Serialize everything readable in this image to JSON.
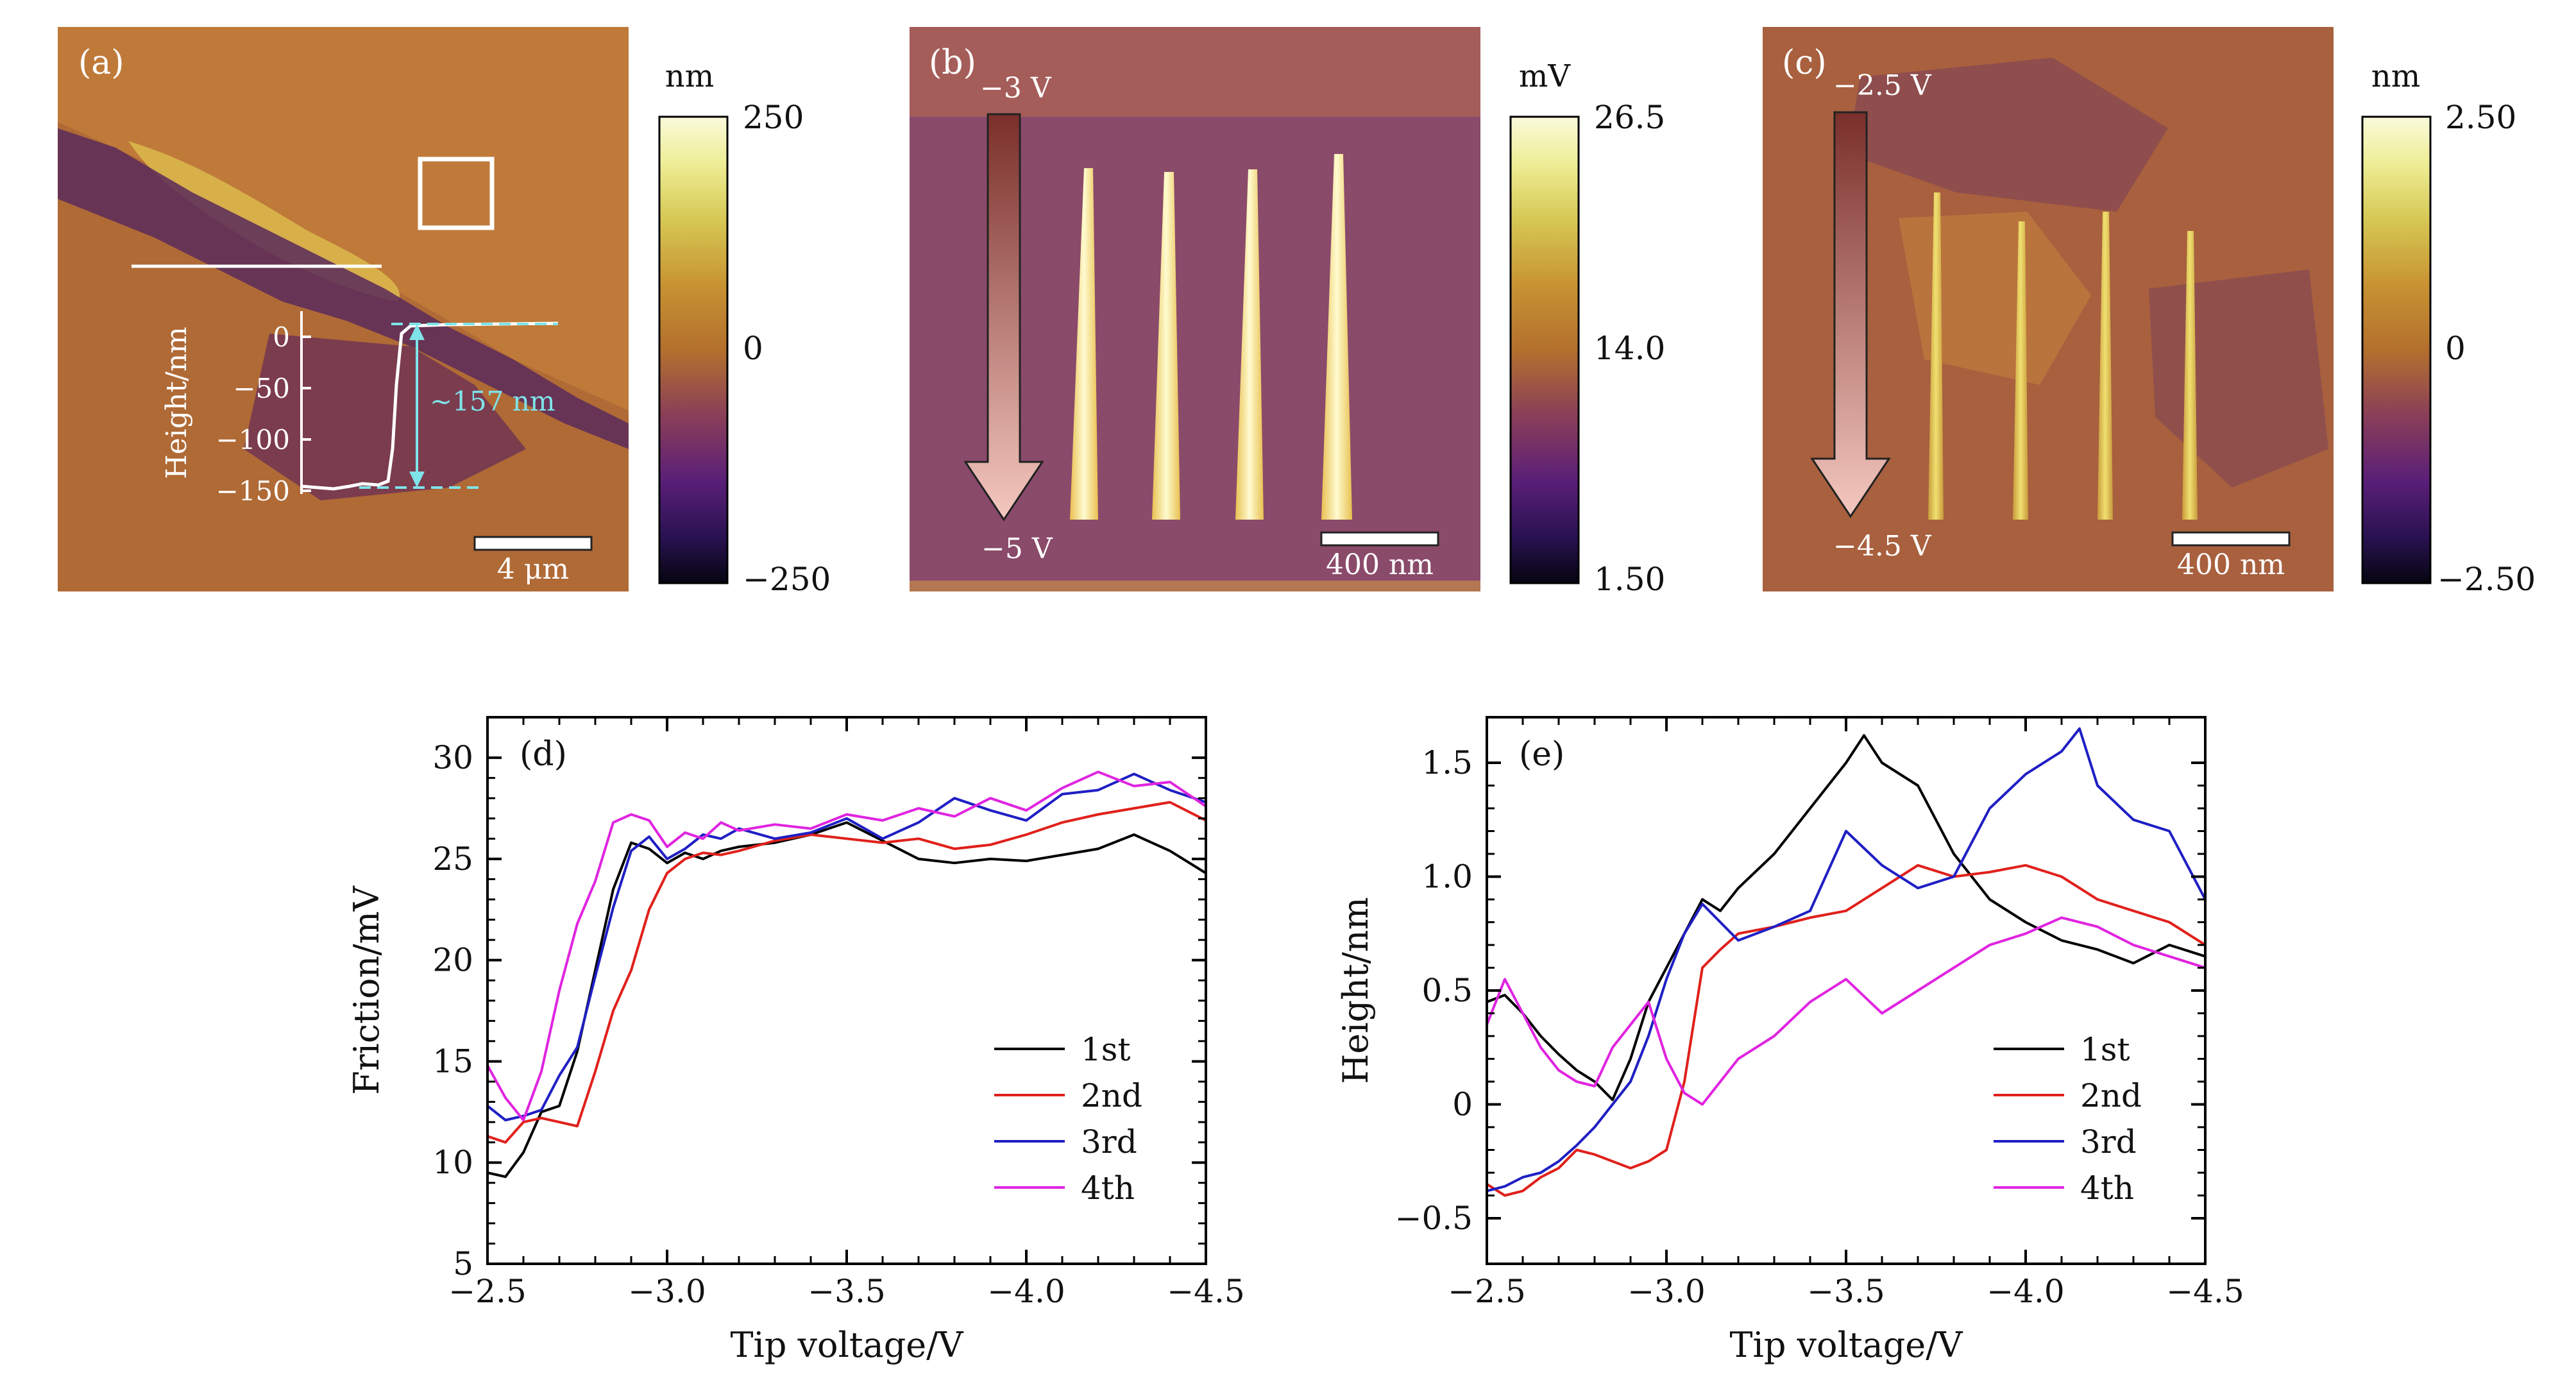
{
  "panels_top": [
    {
      "label": "(a)",
      "colorbar": {
        "unit": "nm",
        "ticks": [
          "250",
          "0",
          "−250"
        ]
      },
      "inset": {
        "ylabel": "Height/nm",
        "yticks": [
          "0",
          "−50",
          "−100",
          "−150"
        ],
        "step_annotation": "~157 nm"
      },
      "scalebar": "4 μm",
      "colors": {
        "annotation": "#7fe3ea"
      }
    },
    {
      "label": "(b)",
      "voltage_top": "−3 V",
      "voltage_bottom": "−5 V",
      "colorbar": {
        "unit": "mV",
        "ticks": [
          "26.5",
          "14.0",
          "1.50"
        ]
      },
      "scalebar": "400 nm"
    },
    {
      "label": "(c)",
      "voltage_top": "−2.5 V",
      "voltage_bottom": "−4.5 V",
      "colorbar": {
        "unit": "nm",
        "ticks": [
          "2.50",
          "0",
          "−2.50"
        ]
      },
      "scalebar": "400 nm"
    }
  ],
  "chart_data": [
    {
      "panel": "(d)",
      "type": "line",
      "xlabel": "Tip voltage/V",
      "ylabel": "Friction/mV",
      "xlim": [
        -2.5,
        -4.5
      ],
      "ylim": [
        5,
        32
      ],
      "xticks": [
        -2.5,
        -3.0,
        -3.5,
        -4.0,
        -4.5
      ],
      "xtick_labels": [
        "−2.5",
        "−3.0",
        "−3.5",
        "−4.0",
        "−4.5"
      ],
      "yticks": [
        5,
        10,
        15,
        20,
        25,
        30
      ],
      "ytick_labels": [
        "5",
        "10",
        "15",
        "20",
        "25",
        "30"
      ],
      "legend_position": "bottom-right",
      "series": [
        {
          "name": "1st",
          "color": "#000000",
          "x": [
            -2.5,
            -2.55,
            -2.6,
            -2.65,
            -2.7,
            -2.75,
            -2.8,
            -2.85,
            -2.9,
            -2.95,
            -3.0,
            -3.05,
            -3.1,
            -3.15,
            -3.2,
            -3.3,
            -3.4,
            -3.5,
            -3.6,
            -3.7,
            -3.8,
            -3.9,
            -4.0,
            -4.1,
            -4.2,
            -4.3,
            -4.4,
            -4.5
          ],
          "y": [
            9.5,
            9.3,
            10.5,
            12.5,
            12.8,
            15.5,
            19.5,
            23.5,
            25.8,
            25.5,
            24.8,
            25.3,
            25.0,
            25.4,
            25.6,
            25.8,
            26.2,
            26.8,
            25.9,
            25.0,
            24.8,
            25.0,
            24.9,
            25.2,
            25.5,
            26.2,
            25.4,
            24.3
          ]
        },
        {
          "name": "2nd",
          "color": "#e0201b",
          "x": [
            -2.5,
            -2.55,
            -2.6,
            -2.65,
            -2.7,
            -2.75,
            -2.8,
            -2.85,
            -2.9,
            -2.95,
            -3.0,
            -3.05,
            -3.1,
            -3.15,
            -3.2,
            -3.3,
            -3.4,
            -3.5,
            -3.6,
            -3.7,
            -3.8,
            -3.9,
            -4.0,
            -4.1,
            -4.2,
            -4.3,
            -4.4,
            -4.5
          ],
          "y": [
            11.3,
            11.0,
            12.0,
            12.2,
            12.0,
            11.8,
            14.5,
            17.5,
            19.5,
            22.5,
            24.3,
            25.0,
            25.3,
            25.2,
            25.4,
            25.9,
            26.2,
            26.0,
            25.8,
            26.0,
            25.5,
            25.7,
            26.2,
            26.8,
            27.2,
            27.5,
            27.8,
            26.9
          ]
        },
        {
          "name": "3rd",
          "color": "#1f1fc4",
          "x": [
            -2.5,
            -2.55,
            -2.6,
            -2.65,
            -2.7,
            -2.75,
            -2.8,
            -2.85,
            -2.9,
            -2.95,
            -3.0,
            -3.05,
            -3.1,
            -3.15,
            -3.2,
            -3.3,
            -3.4,
            -3.5,
            -3.6,
            -3.7,
            -3.8,
            -3.9,
            -4.0,
            -4.1,
            -4.2,
            -4.3,
            -4.4,
            -4.5
          ],
          "y": [
            12.8,
            12.1,
            12.3,
            12.6,
            14.3,
            15.7,
            19.2,
            22.6,
            25.4,
            26.1,
            25.0,
            25.5,
            26.2,
            26.0,
            26.5,
            26.0,
            26.3,
            27.0,
            26.0,
            26.8,
            28.0,
            27.4,
            26.9,
            28.2,
            28.4,
            29.2,
            28.4,
            27.8
          ]
        },
        {
          "name": "4th",
          "color": "#e024e0",
          "x": [
            -2.5,
            -2.55,
            -2.6,
            -2.65,
            -2.7,
            -2.75,
            -2.8,
            -2.85,
            -2.9,
            -2.95,
            -3.0,
            -3.05,
            -3.1,
            -3.15,
            -3.2,
            -3.3,
            -3.4,
            -3.5,
            -3.6,
            -3.7,
            -3.8,
            -3.9,
            -4.0,
            -4.1,
            -4.2,
            -4.3,
            -4.4,
            -4.5
          ],
          "y": [
            14.8,
            13.2,
            12.1,
            14.5,
            18.5,
            21.8,
            23.9,
            26.8,
            27.2,
            26.9,
            25.6,
            26.3,
            26.0,
            26.8,
            26.4,
            26.7,
            26.5,
            27.2,
            26.9,
            27.5,
            27.1,
            28.0,
            27.4,
            28.5,
            29.3,
            28.6,
            28.8,
            27.6
          ]
        }
      ]
    },
    {
      "panel": "(e)",
      "type": "line",
      "xlabel": "Tip voltage/V",
      "ylabel": "Height/nm",
      "xlim": [
        -2.5,
        -4.5
      ],
      "ylim": [
        -0.7,
        1.7
      ],
      "xticks": [
        -2.5,
        -3.0,
        -3.5,
        -4.0,
        -4.5
      ],
      "xtick_labels": [
        "−2.5",
        "−3.0",
        "−3.5",
        "−4.0",
        "−4.5"
      ],
      "yticks": [
        -0.5,
        0,
        0.5,
        1.0,
        1.5
      ],
      "ytick_labels": [
        "−0.5",
        "0",
        "0.5",
        "1.0",
        "1.5"
      ],
      "legend_position": "bottom-right",
      "series": [
        {
          "name": "1st",
          "color": "#000000",
          "x": [
            -2.5,
            -2.55,
            -2.6,
            -2.65,
            -2.7,
            -2.75,
            -2.8,
            -2.85,
            -2.9,
            -2.95,
            -3.0,
            -3.05,
            -3.1,
            -3.15,
            -3.2,
            -3.3,
            -3.4,
            -3.5,
            -3.55,
            -3.6,
            -3.7,
            -3.8,
            -3.9,
            -4.0,
            -4.1,
            -4.2,
            -4.3,
            -4.4,
            -4.5
          ],
          "y": [
            0.45,
            0.48,
            0.4,
            0.3,
            0.22,
            0.15,
            0.1,
            0.02,
            0.2,
            0.45,
            0.6,
            0.75,
            0.9,
            0.85,
            0.95,
            1.1,
            1.3,
            1.5,
            1.62,
            1.5,
            1.4,
            1.1,
            0.9,
            0.8,
            0.72,
            0.68,
            0.62,
            0.7,
            0.65
          ]
        },
        {
          "name": "2nd",
          "color": "#e0201b",
          "x": [
            -2.5,
            -2.55,
            -2.6,
            -2.65,
            -2.7,
            -2.75,
            -2.8,
            -2.85,
            -2.9,
            -2.95,
            -3.0,
            -3.05,
            -3.1,
            -3.15,
            -3.2,
            -3.3,
            -3.4,
            -3.5,
            -3.6,
            -3.7,
            -3.8,
            -3.9,
            -4.0,
            -4.1,
            -4.2,
            -4.3,
            -4.4,
            -4.5
          ],
          "y": [
            -0.35,
            -0.4,
            -0.38,
            -0.32,
            -0.28,
            -0.2,
            -0.22,
            -0.25,
            -0.28,
            -0.25,
            -0.2,
            0.1,
            0.6,
            0.68,
            0.75,
            0.78,
            0.82,
            0.85,
            0.95,
            1.05,
            1.0,
            1.02,
            1.05,
            1.0,
            0.9,
            0.85,
            0.8,
            0.7
          ]
        },
        {
          "name": "3rd",
          "color": "#1f1fc4",
          "x": [
            -2.5,
            -2.55,
            -2.6,
            -2.65,
            -2.7,
            -2.75,
            -2.8,
            -2.85,
            -2.9,
            -2.95,
            -3.0,
            -3.05,
            -3.1,
            -3.15,
            -3.2,
            -3.3,
            -3.4,
            -3.5,
            -3.6,
            -3.7,
            -3.8,
            -3.9,
            -4.0,
            -4.1,
            -4.15,
            -4.2,
            -4.3,
            -4.4,
            -4.5
          ],
          "y": [
            -0.38,
            -0.36,
            -0.32,
            -0.3,
            -0.25,
            -0.18,
            -0.1,
            0.0,
            0.1,
            0.3,
            0.55,
            0.75,
            0.88,
            0.8,
            0.72,
            0.78,
            0.85,
            1.2,
            1.05,
            0.95,
            1.0,
            1.3,
            1.45,
            1.55,
            1.65,
            1.4,
            1.25,
            1.2,
            0.9
          ]
        },
        {
          "name": "4th",
          "color": "#e024e0",
          "x": [
            -2.5,
            -2.55,
            -2.6,
            -2.65,
            -2.7,
            -2.75,
            -2.8,
            -2.85,
            -2.9,
            -2.95,
            -3.0,
            -3.05,
            -3.1,
            -3.15,
            -3.2,
            -3.3,
            -3.4,
            -3.5,
            -3.6,
            -3.7,
            -3.8,
            -3.9,
            -4.0,
            -4.1,
            -4.2,
            -4.3,
            -4.4,
            -4.5
          ],
          "y": [
            0.35,
            0.55,
            0.4,
            0.25,
            0.15,
            0.1,
            0.08,
            0.25,
            0.35,
            0.45,
            0.2,
            0.05,
            0.0,
            0.1,
            0.2,
            0.3,
            0.45,
            0.55,
            0.4,
            0.5,
            0.6,
            0.7,
            0.75,
            0.82,
            0.78,
            0.7,
            0.65,
            0.6
          ]
        }
      ]
    }
  ]
}
